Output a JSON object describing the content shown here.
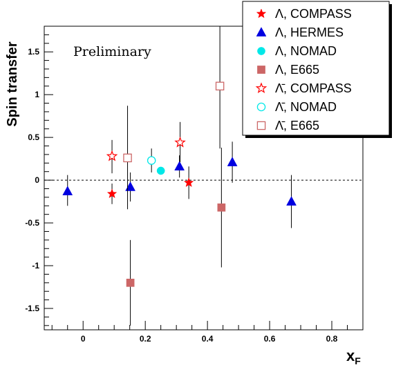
{
  "chart_data": {
    "type": "scatter",
    "title": "",
    "xlabel": "x",
    "xlabel_sub": "F",
    "ylabel": "Spin transfer",
    "xlim": [
      -0.125,
      0.9
    ],
    "ylim": [
      -1.75,
      1.8
    ],
    "x_ticks": [
      0,
      0.2,
      0.4,
      0.6,
      0.8
    ],
    "x_tick_labels": [
      "0",
      "0.2",
      "0.4",
      "0.6",
      "0.8"
    ],
    "y_ticks": [
      -1.5,
      -1,
      -0.5,
      0,
      0.5,
      1,
      1.5
    ],
    "y_tick_labels": [
      "-1.5",
      "-1",
      "-0.5",
      "0",
      "0.5",
      "1",
      "1.5"
    ],
    "reference_line": 0,
    "grid": false,
    "legend_position": "top-right",
    "annotation": "Preliminary",
    "series": [
      {
        "name": "Λ, COMPASS",
        "marker": "star-filled",
        "color": "#ff0000",
        "points": [
          {
            "x": 0.093,
            "y": -0.16,
            "err_lo": 0.12,
            "err_hi": 0.12
          },
          {
            "x": 0.34,
            "y": -0.03,
            "err_lo": 0.19,
            "err_hi": 0.19
          }
        ]
      },
      {
        "name": "Λ, HERMES",
        "marker": "triangle-filled",
        "color": "#0000e0",
        "points": [
          {
            "x": -0.05,
            "y": -0.13,
            "err_lo": 0.17,
            "err_hi": 0.19
          },
          {
            "x": 0.152,
            "y": -0.08,
            "err_lo": 0.17,
            "err_hi": 0.17
          },
          {
            "x": 0.31,
            "y": 0.16,
            "err_lo": 0.13,
            "err_hi": 0.13
          },
          {
            "x": 0.48,
            "y": 0.21,
            "err_lo": 0.24,
            "err_hi": 0.24
          },
          {
            "x": 0.67,
            "y": -0.25,
            "err_lo": 0.31,
            "err_hi": 0.31
          }
        ]
      },
      {
        "name": "Λ, NOMAD",
        "marker": "circle-filled",
        "color": "#00e8e8",
        "points": [
          {
            "x": 0.25,
            "y": 0.11,
            "err_lo": 0.03,
            "err_hi": 0.03
          }
        ]
      },
      {
        "name": "Λ, E665",
        "marker": "square-filled",
        "color": "#cc6666",
        "points": [
          {
            "x": 0.152,
            "y": -1.2,
            "err_lo": 0.5,
            "err_hi": 0.5
          },
          {
            "x": 0.445,
            "y": -0.32,
            "err_lo": 0.7,
            "err_hi": 0.7
          }
        ]
      },
      {
        "name": "Λ̄, COMPASS",
        "marker": "star-open",
        "color": "#ff0000",
        "points": [
          {
            "x": 0.093,
            "y": 0.28,
            "err_lo": 0.2,
            "err_hi": 0.19
          },
          {
            "x": 0.312,
            "y": 0.44,
            "err_lo": 0.23,
            "err_hi": 0.24
          }
        ]
      },
      {
        "name": "Λ̄, NOMAD",
        "marker": "circle-open",
        "color": "#00e8e8",
        "points": [
          {
            "x": 0.22,
            "y": 0.23,
            "err_lo": 0.14,
            "err_hi": 0.14
          }
        ]
      },
      {
        "name": "Λ̄, E665",
        "marker": "square-open",
        "color": "#cc6666",
        "points": [
          {
            "x": 0.143,
            "y": 0.26,
            "err_lo": 0.6,
            "err_hi": 0.61
          },
          {
            "x": 0.44,
            "y": 1.1,
            "err_lo": 0.73,
            "err_hi": 0.7
          }
        ]
      }
    ]
  }
}
